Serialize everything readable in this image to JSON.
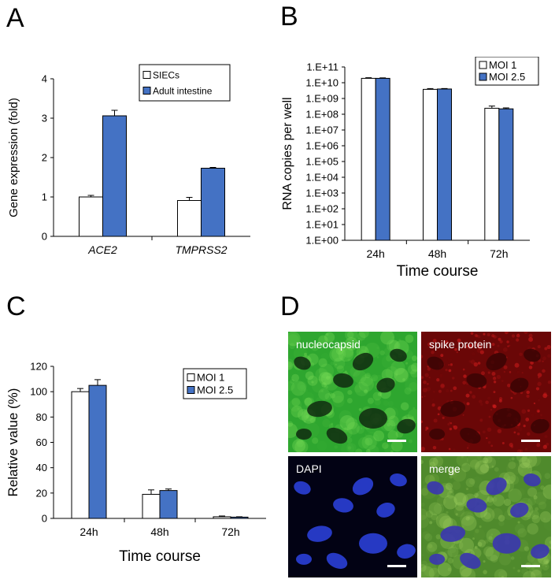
{
  "panels": {
    "A": {
      "letter": "A"
    },
    "B": {
      "letter": "B"
    },
    "C": {
      "letter": "C"
    },
    "D": {
      "letter": "D"
    }
  },
  "chart_data": [
    {
      "id": "A",
      "type": "bar",
      "categories": [
        "ACE2",
        "TMPRSS2"
      ],
      "series": [
        {
          "name": "SIECs",
          "values": [
            1.0,
            0.91
          ],
          "errors": [
            0.04,
            0.08
          ],
          "color": "#ffffff"
        },
        {
          "name": "Adult intestine",
          "values": [
            3.06,
            1.73
          ],
          "errors": [
            0.14,
            0.02
          ],
          "color": "#4472c4"
        }
      ],
      "ylabel": "Gene expression (fold)",
      "xlabel": "",
      "ylim": [
        0,
        4
      ],
      "yticks": [
        "0",
        "1",
        "2",
        "3",
        "4"
      ],
      "legend": "top-right"
    },
    {
      "id": "B",
      "type": "bar",
      "scale": "log",
      "categories": [
        "24h",
        "48h",
        "72h"
      ],
      "series": [
        {
          "name": "MOI 1",
          "values": [
            19000000000.0,
            3800000000.0,
            240000000.0
          ],
          "errors": [
            0.04,
            0.05,
            0.14
          ],
          "color": "#ffffff"
        },
        {
          "name": "MOI 2.5",
          "values": [
            19000000000.0,
            4000000000.0,
            220000000.0
          ],
          "errors": [
            0.03,
            0.03,
            0.06
          ],
          "color": "#4472c4"
        }
      ],
      "ylabel": "RNA copies per well",
      "xlabel": "Time course",
      "ylim": [
        1,
        100000000000.0
      ],
      "yticks": [
        "1.E+00",
        "1.E+01",
        "1.E+02",
        "1.E+03",
        "1.E+04",
        "1.E+05",
        "1.E+06",
        "1.E+07",
        "1.E+08",
        "1.E+09",
        "1.E+10",
        "1.E+11"
      ],
      "legend": "top-right"
    },
    {
      "id": "C",
      "type": "bar",
      "categories": [
        "24h",
        "48h",
        "72h"
      ],
      "series": [
        {
          "name": "MOI 1",
          "values": [
            100,
            19,
            1.3
          ],
          "errors": [
            2.5,
            3.5,
            0.6
          ],
          "color": "#ffffff"
        },
        {
          "name": "MOI 2.5",
          "values": [
            105,
            22,
            1.0
          ],
          "errors": [
            4.5,
            1.2,
            0.3
          ],
          "color": "#4472c4"
        }
      ],
      "ylabel": "Relative value (%)",
      "xlabel": "Time course",
      "ylim": [
        0,
        120
      ],
      "yticks": [
        "0",
        "20",
        "40",
        "60",
        "80",
        "100",
        "120"
      ],
      "legend": "top-right"
    }
  ],
  "micrographs": {
    "tiles": [
      {
        "label": "nucleocapsid",
        "color": "#39c23b"
      },
      {
        "label": "spike protein",
        "color": "#c41414"
      },
      {
        "label": "DAPI",
        "color": "#2a3fd6"
      },
      {
        "label": "merge",
        "color": "#6a9a3a"
      }
    ]
  }
}
